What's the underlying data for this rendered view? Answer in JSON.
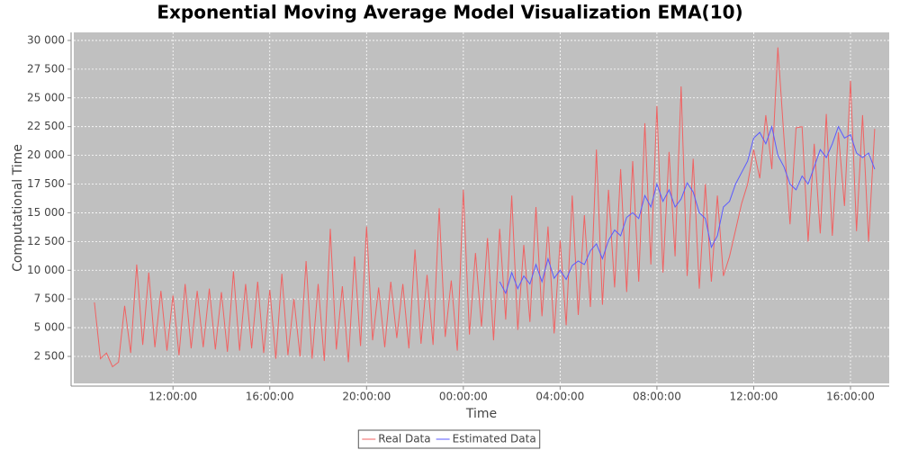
{
  "chart_data": {
    "type": "line",
    "title": "Exponential Moving Average Model Visualization EMA(10)",
    "xlabel": "Time",
    "ylabel": "Computational Time",
    "xlim": [
      7.9,
      41.6
    ],
    "ylim": [
      150,
      30700
    ],
    "xticks": [
      {
        "value": 12,
        "label": "12:00:00"
      },
      {
        "value": 16,
        "label": "16:00:00"
      },
      {
        "value": 20,
        "label": "20:00:00"
      },
      {
        "value": 24,
        "label": "00:00:00"
      },
      {
        "value": 28,
        "label": "04:00:00"
      },
      {
        "value": 32,
        "label": "08:00:00"
      },
      {
        "value": 36,
        "label": "12:00:00"
      },
      {
        "value": 40,
        "label": "16:00:00"
      }
    ],
    "yticks": [
      {
        "value": 2500,
        "label": "2 500"
      },
      {
        "value": 5000,
        "label": "5 000"
      },
      {
        "value": 7500,
        "label": "7 500"
      },
      {
        "value": 10000,
        "label": "10 000"
      },
      {
        "value": 12500,
        "label": "12 500"
      },
      {
        "value": 15000,
        "label": "15 000"
      },
      {
        "value": 17500,
        "label": "17 500"
      },
      {
        "value": 20000,
        "label": "20 000"
      },
      {
        "value": 22500,
        "label": "22 500"
      },
      {
        "value": 25000,
        "label": "25 000"
      },
      {
        "value": 27500,
        "label": "27 500"
      },
      {
        "value": 30000,
        "label": "30 000"
      }
    ],
    "grid": true,
    "legend": "bottom",
    "series": [
      {
        "name": "Real Data",
        "color": "#f06262",
        "x": [
          8.75,
          9,
          9.25,
          9.5,
          9.75,
          10,
          10.25,
          10.5,
          10.75,
          11,
          11.25,
          11.5,
          11.75,
          12,
          12.25,
          12.5,
          12.75,
          13,
          13.25,
          13.5,
          13.75,
          14,
          14.25,
          14.5,
          14.75,
          15,
          15.25,
          15.5,
          15.75,
          16,
          16.25,
          16.5,
          16.75,
          17,
          17.25,
          17.5,
          17.75,
          18,
          18.25,
          18.5,
          18.75,
          19,
          19.25,
          19.5,
          19.75,
          20,
          20.25,
          20.5,
          20.75,
          21,
          21.25,
          21.5,
          21.75,
          22,
          22.25,
          22.5,
          22.75,
          23,
          23.25,
          23.5,
          23.75,
          24,
          24.25,
          24.5,
          24.75,
          25,
          25.25,
          25.5,
          25.75,
          26,
          26.25,
          26.5,
          26.75,
          27,
          27.25,
          27.5,
          27.75,
          28,
          28.25,
          28.5,
          28.75,
          29,
          29.25,
          29.5,
          29.75,
          30,
          30.25,
          30.5,
          30.75,
          31,
          31.25,
          31.5,
          31.75,
          32,
          32.25,
          32.5,
          32.75,
          33,
          33.25,
          33.5,
          33.75,
          34,
          34.25,
          34.5,
          34.75,
          35,
          35.25,
          35.5,
          35.75,
          36,
          36.25,
          36.5,
          36.75,
          37,
          37.25,
          37.5,
          37.75,
          38,
          38.25,
          38.5,
          38.75,
          39,
          39.25,
          39.5,
          39.75,
          40,
          40.25,
          40.5,
          40.75,
          41
        ],
        "values": [
          7200,
          2300,
          2800,
          1600,
          2000,
          6900,
          2800,
          10500,
          3500,
          9800,
          3300,
          8200,
          3000,
          7800,
          2600,
          8800,
          3200,
          8200,
          3300,
          8400,
          3100,
          8100,
          2900,
          9900,
          3000,
          8800,
          3200,
          9000,
          2800,
          8300,
          2300,
          9700,
          2600,
          7500,
          2500,
          10800,
          2300,
          8800,
          2100,
          13600,
          3100,
          8600,
          2000,
          11200,
          3400,
          13800,
          3900,
          8500,
          3300,
          9000,
          4100,
          8800,
          3200,
          11800,
          3600,
          9600,
          3500,
          15400,
          4200,
          9100,
          3000,
          17000,
          4400,
          11500,
          5100,
          12800,
          3900,
          13600,
          5700,
          16500,
          4800,
          12200,
          5500,
          15500,
          6000,
          13800,
          4500,
          12600,
          5200,
          16500,
          6100,
          14800,
          6800,
          20500,
          7000,
          17000,
          8500,
          18800,
          8100,
          19500,
          9000,
          22800,
          10500,
          24300,
          9800,
          20300,
          11200,
          26000,
          9500,
          19700,
          8400,
          17500,
          9000,
          16500,
          9500,
          11200,
          13500,
          15800,
          17500,
          20500,
          18000,
          23500,
          18800,
          29400,
          21500,
          14000,
          22400,
          22500,
          12500,
          21000,
          13200,
          23600,
          13000,
          22000,
          15600,
          26500,
          13400,
          23500,
          12500,
          22300
        ]
      },
      {
        "name": "Estimated Data",
        "color": "#5a5aff",
        "x": [
          25.5,
          25.75,
          26,
          26.25,
          26.5,
          26.75,
          27,
          27.25,
          27.5,
          27.75,
          28,
          28.25,
          28.5,
          28.75,
          29,
          29.25,
          29.5,
          29.75,
          30,
          30.25,
          30.5,
          30.75,
          31,
          31.25,
          31.5,
          31.75,
          32,
          32.25,
          32.5,
          32.75,
          33,
          33.25,
          33.5,
          33.75,
          34,
          34.25,
          34.5,
          34.75,
          35,
          35.25,
          35.5,
          35.75,
          36,
          36.25,
          36.5,
          36.75,
          37,
          37.25,
          37.5,
          37.75,
          38,
          38.25,
          38.5,
          38.75,
          39,
          39.25,
          39.5,
          39.75,
          40,
          40.25,
          40.5,
          40.75,
          41
        ],
        "values": [
          9000,
          8000,
          9800,
          8400,
          9500,
          8800,
          10500,
          9000,
          11000,
          9300,
          10000,
          9200,
          10400,
          10800,
          10500,
          11700,
          12300,
          11000,
          12600,
          13500,
          13000,
          14600,
          15000,
          14500,
          16500,
          15500,
          17500,
          16000,
          17000,
          15500,
          16200,
          17600,
          16800,
          15000,
          14500,
          12000,
          13000,
          15500,
          16000,
          17500,
          18500,
          19500,
          21500,
          22000,
          21000,
          22500,
          20000,
          19000,
          17500,
          17000,
          18200,
          17500,
          19000,
          20500,
          19800,
          21000,
          22500,
          21500,
          21800,
          20200,
          19800,
          20200,
          18800
        ]
      }
    ]
  }
}
